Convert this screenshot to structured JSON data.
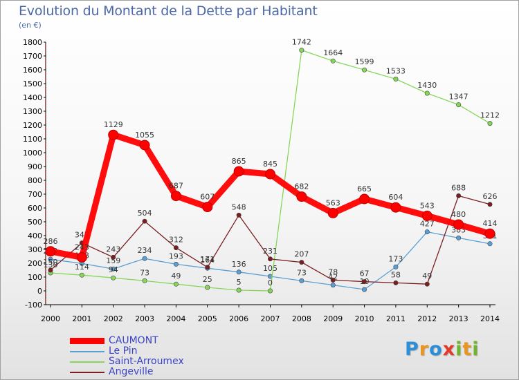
{
  "title": "Evolution du Montant de la Dette par Habitant",
  "subtitle": "(en €)",
  "logo": {
    "letters": [
      "P",
      "r",
      "o",
      "x",
      "i",
      "t",
      "i"
    ],
    "colors": [
      "#2c8dd9",
      "#e8961f",
      "#2c8dd9",
      "#e23a2a",
      "#6cb52d",
      "#e8961f",
      "#6cb52d"
    ]
  },
  "chart_data": {
    "type": "line",
    "title": "Evolution du Montant de la Dette par Habitant",
    "ylabel": "(en €)",
    "xlabel": "",
    "ylim": [
      -100,
      1800
    ],
    "yticks": [
      -100,
      0,
      100,
      200,
      300,
      400,
      500,
      600,
      700,
      800,
      900,
      1000,
      1100,
      1200,
      1300,
      1400,
      1500,
      1600,
      1700,
      1800
    ],
    "categories": [
      "2000",
      "2001",
      "2002",
      "2003",
      "2004",
      "2005",
      "2006",
      "2007",
      "2008",
      "2009",
      "2010",
      "2011",
      "2012",
      "2013",
      "2014"
    ],
    "grid": false,
    "legend_position": "bottom-left",
    "series": [
      {
        "name": "CAUMONT",
        "color": "#ff0000",
        "weight": "thick",
        "values": [
          286,
          243,
          1129,
          1055,
          687,
          607,
          865,
          845,
          682,
          563,
          665,
          604,
          543,
          480,
          414
        ]
      },
      {
        "name": "Le Pin",
        "color": "#5b9fd4",
        "weight": "thin",
        "values": [
          229,
          198,
          159,
          234,
          193,
          164,
          136,
          105,
          73,
          42,
          10,
          173,
          427,
          383,
          341
        ]
      },
      {
        "name": "Saint-Arroumex",
        "color": "#86d65a",
        "weight": "thin",
        "values": [
          130,
          114,
          94,
          73,
          49,
          25,
          5,
          0,
          1742,
          1664,
          1599,
          1533,
          1430,
          1347,
          1212
        ]
      },
      {
        "name": "Angeville",
        "color": "#7a1e22",
        "weight": "thin",
        "values": [
          150,
          347,
          243,
          504,
          312,
          171,
          548,
          231,
          207,
          78,
          67,
          58,
          49,
          688,
          626
        ]
      }
    ]
  }
}
